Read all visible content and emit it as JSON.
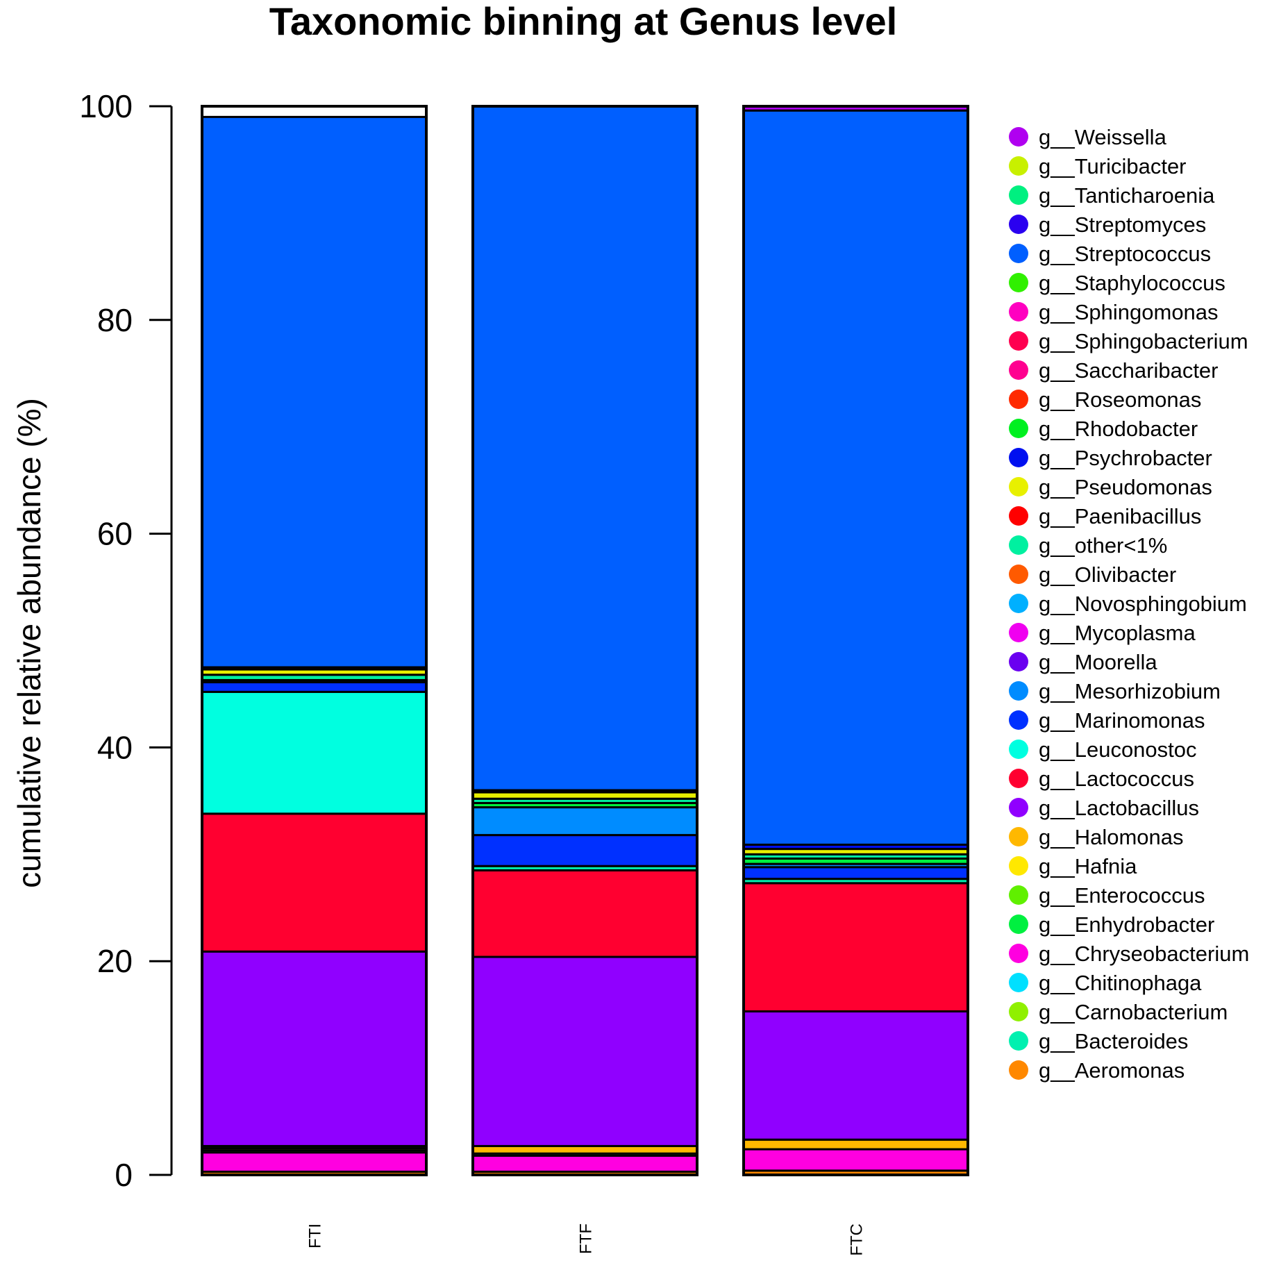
{
  "chart_data": {
    "type": "bar",
    "stacked": true,
    "title": "Taxonomic binning at Genus level",
    "xlabel": "",
    "ylabel": "cumulative relative abundance (%)",
    "ylim": [
      0,
      100
    ],
    "yticks": [
      0,
      20,
      40,
      60,
      80,
      100
    ],
    "categories": [
      "FTI",
      "FTF",
      "FTC"
    ],
    "legend_position": "right",
    "legend": [
      {
        "name": "g__Weissella",
        "color": "#B000F0"
      },
      {
        "name": "g__Turicibacter",
        "color": "#C8F000"
      },
      {
        "name": "g__Tanticharoenia",
        "color": "#00F080"
      },
      {
        "name": "g__Streptomyces",
        "color": "#2A00F0"
      },
      {
        "name": "g__Streptococcus",
        "color": "#005FFF"
      },
      {
        "name": "g__Staphylococcus",
        "color": "#30F000"
      },
      {
        "name": "g__Sphingomonas",
        "color": "#FF00C0"
      },
      {
        "name": "g__Sphingobacterium",
        "color": "#FF0050"
      },
      {
        "name": "g__Saccharibacter",
        "color": "#FF0090"
      },
      {
        "name": "g__Roseomonas",
        "color": "#FF2A00"
      },
      {
        "name": "g__Rhodobacter",
        "color": "#00F020"
      },
      {
        "name": "g__Psychrobacter",
        "color": "#0010F0"
      },
      {
        "name": "g__Pseudomonas",
        "color": "#E8F000"
      },
      {
        "name": "g__Paenibacillus",
        "color": "#FF0000"
      },
      {
        "name": "g__other<1%",
        "color": "#00F0A0"
      },
      {
        "name": "g__Olivibacter",
        "color": "#FF5A00"
      },
      {
        "name": "g__Novosphingobium",
        "color": "#00B0FF"
      },
      {
        "name": "g__Mycoplasma",
        "color": "#F000F0"
      },
      {
        "name": "g__Moorella",
        "color": "#6A00F0"
      },
      {
        "name": "g__Mesorhizobium",
        "color": "#008CFF"
      },
      {
        "name": "g__Marinomonas",
        "color": "#0030FF"
      },
      {
        "name": "g__Leuconostoc",
        "color": "#00FFE0"
      },
      {
        "name": "g__Lactococcus",
        "color": "#FF0030"
      },
      {
        "name": "g__Lactobacillus",
        "color": "#9000FF"
      },
      {
        "name": "g__Halomonas",
        "color": "#FFB800"
      },
      {
        "name": "g__Hafnia",
        "color": "#FFE800"
      },
      {
        "name": "g__Enterococcus",
        "color": "#60F000"
      },
      {
        "name": "g__Enhydrobacter",
        "color": "#00F040"
      },
      {
        "name": "g__Chryseobacterium",
        "color": "#FF00E0"
      },
      {
        "name": "g__Chitinophaga",
        "color": "#00E0FF"
      },
      {
        "name": "g__Carnobacterium",
        "color": "#90F000"
      },
      {
        "name": "g__Bacteroides",
        "color": "#00F0B0"
      },
      {
        "name": "g__Aeromonas",
        "color": "#FF8800"
      }
    ],
    "bars": [
      {
        "category": "FTI",
        "segments": [
          {
            "name": "g__Aeromonas",
            "value": 0.3
          },
          {
            "name": "g__Chryseobacterium",
            "value": 1.8
          },
          {
            "name": "g__Enterococcus",
            "value": 0.2
          },
          {
            "name": "g__Hafnia",
            "value": 0.2
          },
          {
            "name": "g__Halomonas",
            "value": 0.2
          },
          {
            "name": "g__Lactobacillus",
            "value": 18.2
          },
          {
            "name": "g__Lactococcus",
            "value": 12.9
          },
          {
            "name": "g__Leuconostoc",
            "value": 11.4
          },
          {
            "name": "g__Marinomonas",
            "value": 0.9
          },
          {
            "name": "g__Mesorhizobium",
            "value": 0.2
          },
          {
            "name": "g__other<1%",
            "value": 0.5
          },
          {
            "name": "g__Pseudomonas",
            "value": 0.5
          },
          {
            "name": "g__Psychrobacter",
            "value": 0.2
          },
          {
            "name": "g__Streptococcus",
            "value": 51.5
          }
        ]
      },
      {
        "category": "FTF",
        "segments": [
          {
            "name": "g__Aeromonas",
            "value": 0.3
          },
          {
            "name": "g__Chryseobacterium",
            "value": 1.5
          },
          {
            "name": "g__Hafnia",
            "value": 0.2
          },
          {
            "name": "g__Halomonas",
            "value": 0.7
          },
          {
            "name": "g__Lactobacillus",
            "value": 17.7
          },
          {
            "name": "g__Lactococcus",
            "value": 8.1
          },
          {
            "name": "g__Bacteroides",
            "value": 0.4
          },
          {
            "name": "g__Marinomonas",
            "value": 2.9
          },
          {
            "name": "g__Mesorhizobium",
            "value": 2.6
          },
          {
            "name": "g__Enhydrobacter",
            "value": 0.4
          },
          {
            "name": "g__other<1%",
            "value": 0.4
          },
          {
            "name": "g__Pseudomonas",
            "value": 0.6
          },
          {
            "name": "g__Psychrobacter",
            "value": 0.2
          },
          {
            "name": "g__Streptococcus",
            "value": 64.0
          }
        ]
      },
      {
        "category": "FTC",
        "segments": [
          {
            "name": "g__Aeromonas",
            "value": 0.4
          },
          {
            "name": "g__Chryseobacterium",
            "value": 2.0
          },
          {
            "name": "g__Halomonas",
            "value": 0.9
          },
          {
            "name": "g__Lactobacillus",
            "value": 12.0
          },
          {
            "name": "g__Lactococcus",
            "value": 12.0
          },
          {
            "name": "g__Bacteroides",
            "value": 0.4
          },
          {
            "name": "g__Marinomonas",
            "value": 1.1
          },
          {
            "name": "g__Mesorhizobium",
            "value": 0.3
          },
          {
            "name": "g__Enhydrobacter",
            "value": 0.5
          },
          {
            "name": "g__other<1%",
            "value": 0.4
          },
          {
            "name": "g__Pseudomonas",
            "value": 0.5
          },
          {
            "name": "g__Psychrobacter",
            "value": 0.4
          },
          {
            "name": "g__Streptococcus",
            "value": 68.7
          },
          {
            "name": "g__Weissella",
            "value": 0.4
          }
        ]
      }
    ]
  }
}
